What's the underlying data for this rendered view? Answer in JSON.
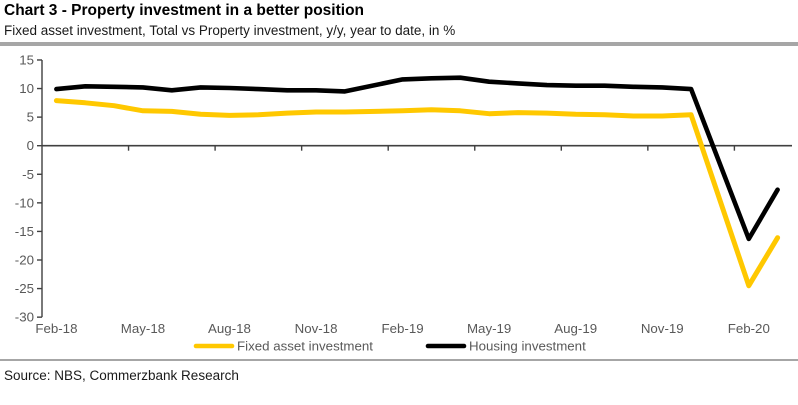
{
  "header": {
    "title": "Chart 3 - Property investment in a better position",
    "subtitle": "Fixed asset investment, Total vs Property investment, y/y, year to date, in %"
  },
  "footer": {
    "source": "Source: NBS, Commerzbank Research"
  },
  "colors": {
    "accent_yellow": "#FFC800",
    "line_black": "#000000",
    "axis_text": "#595959",
    "axis_line": "#404040",
    "divider": "#A6A6A6"
  },
  "chart_data": {
    "type": "line",
    "title": "Chart 3 - Property investment in a better position",
    "subtitle": "Fixed asset investment, Total vs Property investment, y/y, year to date, in %",
    "ylabel": "y/y, year to date, in %",
    "ylim": [
      -30,
      15
    ],
    "y_ticks": [
      15,
      10,
      5,
      0,
      -5,
      -10,
      -15,
      -20,
      -25,
      -30
    ],
    "x_tick_labels": [
      "Feb-18",
      "May-18",
      "Aug-18",
      "Nov-18",
      "Feb-19",
      "May-19",
      "Aug-19",
      "Nov-19",
      "Feb-20"
    ],
    "months": [
      "Feb-18",
      "Mar-18",
      "Apr-18",
      "May-18",
      "Jun-18",
      "Jul-18",
      "Aug-18",
      "Sep-18",
      "Oct-18",
      "Nov-18",
      "Dec-18",
      "Jan-19",
      "Feb-19",
      "Mar-19",
      "Apr-19",
      "May-19",
      "Jun-19",
      "Jul-19",
      "Aug-19",
      "Sep-19",
      "Oct-19",
      "Nov-19",
      "Dec-19",
      "Jan-20",
      "Feb-20",
      "Mar-20"
    ],
    "series": [
      {
        "name": "Fixed asset investment",
        "color": "#FFC800",
        "values": [
          7.9,
          7.5,
          7.0,
          6.1,
          6.0,
          5.5,
          5.3,
          5.4,
          5.7,
          5.9,
          5.9,
          null,
          6.1,
          6.3,
          6.1,
          5.6,
          5.8,
          5.7,
          5.5,
          5.4,
          5.2,
          5.2,
          5.4,
          null,
          -24.5,
          -16.1
        ]
      },
      {
        "name": "Housing investment",
        "color": "#000000",
        "values": [
          9.9,
          10.4,
          10.3,
          10.2,
          9.7,
          10.2,
          10.1,
          9.9,
          9.7,
          9.7,
          9.5,
          null,
          11.6,
          11.8,
          11.9,
          11.2,
          10.9,
          10.6,
          10.5,
          10.5,
          10.3,
          10.2,
          9.9,
          null,
          -16.3,
          -7.7
        ]
      }
    ],
    "legend_position": "bottom",
    "grid": false
  }
}
